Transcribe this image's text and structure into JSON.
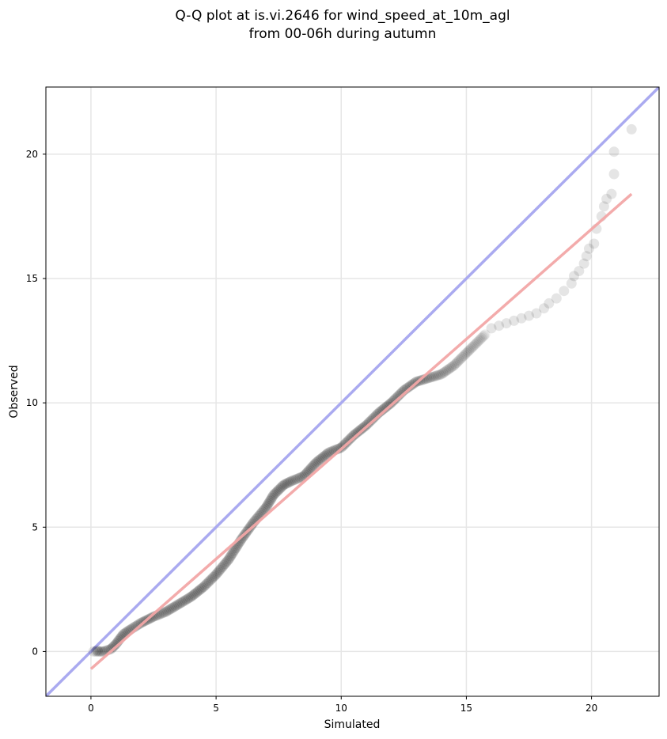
{
  "chart_data": {
    "type": "scatter",
    "title_lines": [
      "Q-Q plot at is.vi.2646 for wind_speed_at_10m_agl",
      "from 00-06h during autumn"
    ],
    "xlabel": "Simulated",
    "ylabel": "Observed",
    "xlim": [
      -1.8,
      22.7
    ],
    "ylim": [
      -1.8,
      22.7
    ],
    "xticks": [
      0,
      5,
      10,
      15,
      20
    ],
    "yticks": [
      0,
      5,
      10,
      15,
      20
    ],
    "xtick_labels": [
      "0",
      "5",
      "10",
      "15",
      "20"
    ],
    "ytick_labels": [
      "0",
      "5",
      "10",
      "15",
      "20"
    ],
    "grid": true,
    "reference_line": {
      "name": "1:1",
      "color": "#aaaaf0",
      "from": [
        -1.8,
        -1.8
      ],
      "to": [
        22.7,
        22.7
      ]
    },
    "fit_line": {
      "color": "#f2a6a6",
      "from": [
        0.0,
        -0.7
      ],
      "to": [
        21.6,
        18.4
      ]
    },
    "point_color": "#000000",
    "dense_path": [
      [
        0.2,
        0.0
      ],
      [
        0.5,
        0.0
      ],
      [
        0.8,
        0.1
      ],
      [
        1.0,
        0.3
      ],
      [
        1.3,
        0.7
      ],
      [
        1.6,
        0.9
      ],
      [
        2.0,
        1.15
      ],
      [
        2.5,
        1.4
      ],
      [
        3.0,
        1.6
      ],
      [
        3.5,
        1.9
      ],
      [
        4.0,
        2.2
      ],
      [
        4.5,
        2.6
      ],
      [
        5.0,
        3.1
      ],
      [
        5.5,
        3.7
      ],
      [
        6.0,
        4.5
      ],
      [
        6.5,
        5.2
      ],
      [
        7.0,
        5.8
      ],
      [
        7.3,
        6.3
      ],
      [
        7.7,
        6.7
      ],
      [
        8.0,
        6.85
      ],
      [
        8.5,
        7.05
      ],
      [
        9.0,
        7.6
      ],
      [
        9.5,
        8.0
      ],
      [
        10.0,
        8.2
      ],
      [
        10.5,
        8.7
      ],
      [
        11.0,
        9.1
      ],
      [
        11.5,
        9.6
      ],
      [
        12.0,
        10.0
      ],
      [
        12.5,
        10.5
      ],
      [
        13.0,
        10.85
      ],
      [
        13.5,
        11.0
      ],
      [
        14.0,
        11.15
      ],
      [
        14.5,
        11.5
      ],
      [
        15.0,
        12.0
      ],
      [
        15.4,
        12.4
      ],
      [
        15.8,
        12.8
      ]
    ],
    "tail_points": [
      [
        0.1,
        0.0
      ],
      [
        0.25,
        0.05
      ],
      [
        16.0,
        13.0
      ],
      [
        16.3,
        13.1
      ],
      [
        16.6,
        13.2
      ],
      [
        16.9,
        13.3
      ],
      [
        17.2,
        13.4
      ],
      [
        17.5,
        13.5
      ],
      [
        17.8,
        13.6
      ],
      [
        18.1,
        13.8
      ],
      [
        18.3,
        14.0
      ],
      [
        18.6,
        14.2
      ],
      [
        18.9,
        14.5
      ],
      [
        19.2,
        14.8
      ],
      [
        19.3,
        15.1
      ],
      [
        19.5,
        15.3
      ],
      [
        19.7,
        15.6
      ],
      [
        19.8,
        15.9
      ],
      [
        19.9,
        16.2
      ],
      [
        20.1,
        16.4
      ],
      [
        20.2,
        17.0
      ],
      [
        20.4,
        17.5
      ],
      [
        20.5,
        17.9
      ],
      [
        20.6,
        18.2
      ],
      [
        20.8,
        18.4
      ],
      [
        20.9,
        19.2
      ],
      [
        20.9,
        20.1
      ],
      [
        21.6,
        21.0
      ]
    ]
  }
}
